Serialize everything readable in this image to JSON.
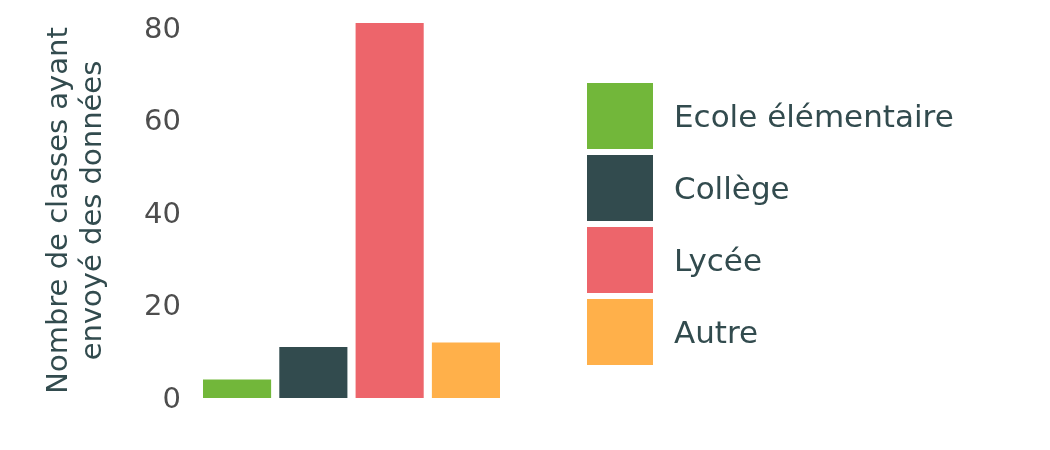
{
  "chart_data": {
    "type": "bar",
    "ylabel": "Nombre de classes ayant\nenvoyé des données",
    "categories": [
      null
    ],
    "series": [
      {
        "name": "Ecole élémentaire",
        "color": "#72b73a",
        "values": [
          4
        ]
      },
      {
        "name": "Collège",
        "color": "#324b4e",
        "values": [
          11
        ]
      },
      {
        "name": "Lycée",
        "color": "#ed656b",
        "values": [
          81
        ]
      },
      {
        "name": "Autre",
        "color": "#ffb04a",
        "values": [
          12
        ]
      }
    ],
    "ylim": [
      0,
      81
    ],
    "yticks": [
      0,
      20,
      40,
      60,
      80
    ],
    "grid": false,
    "legend": "right"
  }
}
